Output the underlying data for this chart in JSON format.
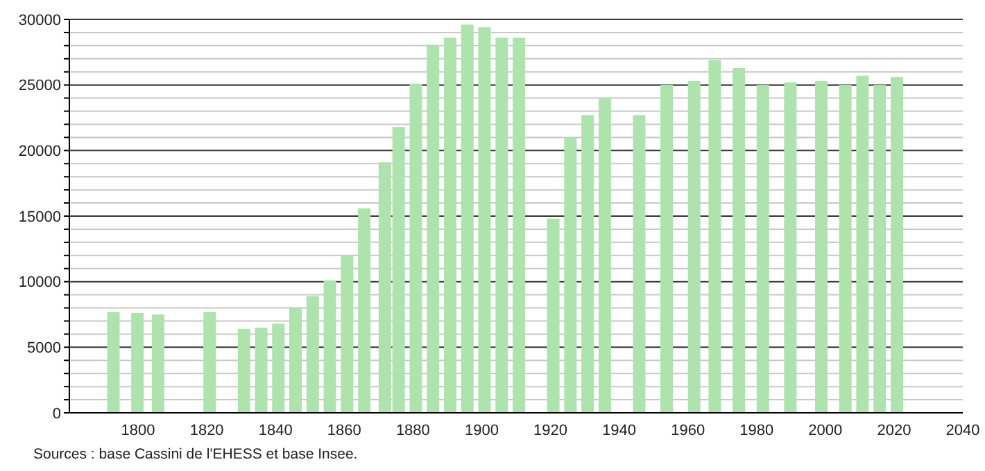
{
  "chart_data": {
    "type": "bar",
    "x": [
      1793,
      1800,
      1806,
      1821,
      1831,
      1836,
      1841,
      1846,
      1851,
      1856,
      1861,
      1866,
      1872,
      1876,
      1881,
      1886,
      1891,
      1896,
      1901,
      1906,
      1911,
      1921,
      1926,
      1931,
      1936,
      1946,
      1954,
      1962,
      1968,
      1975,
      1982,
      1990,
      1999,
      2006,
      2011,
      2016,
      2021
    ],
    "values": [
      7700,
      7600,
      7500,
      7700,
      6400,
      6500,
      6800,
      8000,
      8900,
      10100,
      12000,
      15600,
      19100,
      21800,
      25100,
      28000,
      28600,
      29600,
      29400,
      28600,
      28600,
      14800,
      21000,
      22700,
      24000,
      22700,
      25000,
      25300,
      26900,
      26300,
      25000,
      25200,
      25300,
      25000,
      25700,
      25000,
      25600
    ],
    "color": "#aee3ae",
    "xlim": [
      1780,
      2040
    ],
    "xticks": [
      1800,
      1820,
      1840,
      1860,
      1880,
      1900,
      1920,
      1940,
      1960,
      1980,
      2000,
      2020,
      2040
    ],
    "ylim": [
      0,
      30000
    ],
    "yticks": [
      0,
      {
        "value": 1000,
        "label": null
      },
      {
        "value": 2000,
        "label": null
      },
      {
        "value": 3000,
        "label": null
      },
      {
        "value": 4000,
        "label": null
      },
      5000,
      {
        "value": 6000,
        "label": null
      },
      {
        "value": 7000,
        "label": null
      },
      {
        "value": 8000,
        "label": null
      },
      {
        "value": 9000,
        "label": null
      },
      10000,
      {
        "value": 11000,
        "label": null
      },
      {
        "value": 12000,
        "label": null
      },
      {
        "value": 13000,
        "label": null
      },
      {
        "value": 14000,
        "label": null
      },
      15000,
      {
        "value": 16000,
        "label": null
      },
      {
        "value": 17000,
        "label": null
      },
      {
        "value": 18000,
        "label": null
      },
      {
        "value": 19000,
        "label": null
      },
      20000,
      {
        "value": 21000,
        "label": null
      },
      {
        "value": 22000,
        "label": null
      },
      {
        "value": 23000,
        "label": null
      },
      {
        "value": 24000,
        "label": null
      },
      25000,
      {
        "value": 26000,
        "label": null
      },
      {
        "value": 27000,
        "label": null
      },
      {
        "value": 28000,
        "label": null
      },
      {
        "value": 29000,
        "label": null
      },
      30000
    ],
    "grid": "y",
    "annotations": [
      "Sources : base Cassini de l'EHESS et base Insee."
    ]
  }
}
